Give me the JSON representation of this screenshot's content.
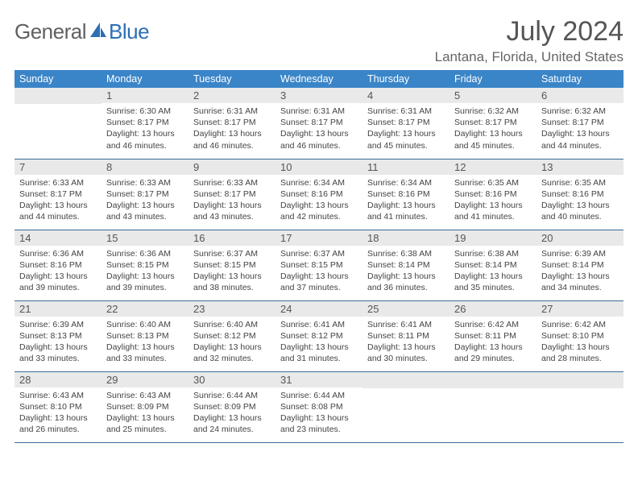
{
  "logo": {
    "text1": "General",
    "text2": "Blue",
    "accent_color": "#2d6fb5"
  },
  "title": "July 2024",
  "location": "Lantana, Florida, United States",
  "header_bg": "#3a85c8",
  "daynum_bg": "#e9e9e9",
  "border_color": "#3a6a9a",
  "weekdays": [
    "Sunday",
    "Monday",
    "Tuesday",
    "Wednesday",
    "Thursday",
    "Friday",
    "Saturday"
  ],
  "cell_fontsize": 10.5,
  "weeks": [
    [
      null,
      {
        "n": "1",
        "sr": "Sunrise: 6:30 AM",
        "ss": "Sunset: 8:17 PM",
        "d1": "Daylight: 13 hours",
        "d2": "and 46 minutes."
      },
      {
        "n": "2",
        "sr": "Sunrise: 6:31 AM",
        "ss": "Sunset: 8:17 PM",
        "d1": "Daylight: 13 hours",
        "d2": "and 46 minutes."
      },
      {
        "n": "3",
        "sr": "Sunrise: 6:31 AM",
        "ss": "Sunset: 8:17 PM",
        "d1": "Daylight: 13 hours",
        "d2": "and 46 minutes."
      },
      {
        "n": "4",
        "sr": "Sunrise: 6:31 AM",
        "ss": "Sunset: 8:17 PM",
        "d1": "Daylight: 13 hours",
        "d2": "and 45 minutes."
      },
      {
        "n": "5",
        "sr": "Sunrise: 6:32 AM",
        "ss": "Sunset: 8:17 PM",
        "d1": "Daylight: 13 hours",
        "d2": "and 45 minutes."
      },
      {
        "n": "6",
        "sr": "Sunrise: 6:32 AM",
        "ss": "Sunset: 8:17 PM",
        "d1": "Daylight: 13 hours",
        "d2": "and 44 minutes."
      }
    ],
    [
      {
        "n": "7",
        "sr": "Sunrise: 6:33 AM",
        "ss": "Sunset: 8:17 PM",
        "d1": "Daylight: 13 hours",
        "d2": "and 44 minutes."
      },
      {
        "n": "8",
        "sr": "Sunrise: 6:33 AM",
        "ss": "Sunset: 8:17 PM",
        "d1": "Daylight: 13 hours",
        "d2": "and 43 minutes."
      },
      {
        "n": "9",
        "sr": "Sunrise: 6:33 AM",
        "ss": "Sunset: 8:17 PM",
        "d1": "Daylight: 13 hours",
        "d2": "and 43 minutes."
      },
      {
        "n": "10",
        "sr": "Sunrise: 6:34 AM",
        "ss": "Sunset: 8:16 PM",
        "d1": "Daylight: 13 hours",
        "d2": "and 42 minutes."
      },
      {
        "n": "11",
        "sr": "Sunrise: 6:34 AM",
        "ss": "Sunset: 8:16 PM",
        "d1": "Daylight: 13 hours",
        "d2": "and 41 minutes."
      },
      {
        "n": "12",
        "sr": "Sunrise: 6:35 AM",
        "ss": "Sunset: 8:16 PM",
        "d1": "Daylight: 13 hours",
        "d2": "and 41 minutes."
      },
      {
        "n": "13",
        "sr": "Sunrise: 6:35 AM",
        "ss": "Sunset: 8:16 PM",
        "d1": "Daylight: 13 hours",
        "d2": "and 40 minutes."
      }
    ],
    [
      {
        "n": "14",
        "sr": "Sunrise: 6:36 AM",
        "ss": "Sunset: 8:16 PM",
        "d1": "Daylight: 13 hours",
        "d2": "and 39 minutes."
      },
      {
        "n": "15",
        "sr": "Sunrise: 6:36 AM",
        "ss": "Sunset: 8:15 PM",
        "d1": "Daylight: 13 hours",
        "d2": "and 39 minutes."
      },
      {
        "n": "16",
        "sr": "Sunrise: 6:37 AM",
        "ss": "Sunset: 8:15 PM",
        "d1": "Daylight: 13 hours",
        "d2": "and 38 minutes."
      },
      {
        "n": "17",
        "sr": "Sunrise: 6:37 AM",
        "ss": "Sunset: 8:15 PM",
        "d1": "Daylight: 13 hours",
        "d2": "and 37 minutes."
      },
      {
        "n": "18",
        "sr": "Sunrise: 6:38 AM",
        "ss": "Sunset: 8:14 PM",
        "d1": "Daylight: 13 hours",
        "d2": "and 36 minutes."
      },
      {
        "n": "19",
        "sr": "Sunrise: 6:38 AM",
        "ss": "Sunset: 8:14 PM",
        "d1": "Daylight: 13 hours",
        "d2": "and 35 minutes."
      },
      {
        "n": "20",
        "sr": "Sunrise: 6:39 AM",
        "ss": "Sunset: 8:14 PM",
        "d1": "Daylight: 13 hours",
        "d2": "and 34 minutes."
      }
    ],
    [
      {
        "n": "21",
        "sr": "Sunrise: 6:39 AM",
        "ss": "Sunset: 8:13 PM",
        "d1": "Daylight: 13 hours",
        "d2": "and 33 minutes."
      },
      {
        "n": "22",
        "sr": "Sunrise: 6:40 AM",
        "ss": "Sunset: 8:13 PM",
        "d1": "Daylight: 13 hours",
        "d2": "and 33 minutes."
      },
      {
        "n": "23",
        "sr": "Sunrise: 6:40 AM",
        "ss": "Sunset: 8:12 PM",
        "d1": "Daylight: 13 hours",
        "d2": "and 32 minutes."
      },
      {
        "n": "24",
        "sr": "Sunrise: 6:41 AM",
        "ss": "Sunset: 8:12 PM",
        "d1": "Daylight: 13 hours",
        "d2": "and 31 minutes."
      },
      {
        "n": "25",
        "sr": "Sunrise: 6:41 AM",
        "ss": "Sunset: 8:11 PM",
        "d1": "Daylight: 13 hours",
        "d2": "and 30 minutes."
      },
      {
        "n": "26",
        "sr": "Sunrise: 6:42 AM",
        "ss": "Sunset: 8:11 PM",
        "d1": "Daylight: 13 hours",
        "d2": "and 29 minutes."
      },
      {
        "n": "27",
        "sr": "Sunrise: 6:42 AM",
        "ss": "Sunset: 8:10 PM",
        "d1": "Daylight: 13 hours",
        "d2": "and 28 minutes."
      }
    ],
    [
      {
        "n": "28",
        "sr": "Sunrise: 6:43 AM",
        "ss": "Sunset: 8:10 PM",
        "d1": "Daylight: 13 hours",
        "d2": "and 26 minutes."
      },
      {
        "n": "29",
        "sr": "Sunrise: 6:43 AM",
        "ss": "Sunset: 8:09 PM",
        "d1": "Daylight: 13 hours",
        "d2": "and 25 minutes."
      },
      {
        "n": "30",
        "sr": "Sunrise: 6:44 AM",
        "ss": "Sunset: 8:09 PM",
        "d1": "Daylight: 13 hours",
        "d2": "and 24 minutes."
      },
      {
        "n": "31",
        "sr": "Sunrise: 6:44 AM",
        "ss": "Sunset: 8:08 PM",
        "d1": "Daylight: 13 hours",
        "d2": "and 23 minutes."
      },
      null,
      null,
      null
    ]
  ]
}
